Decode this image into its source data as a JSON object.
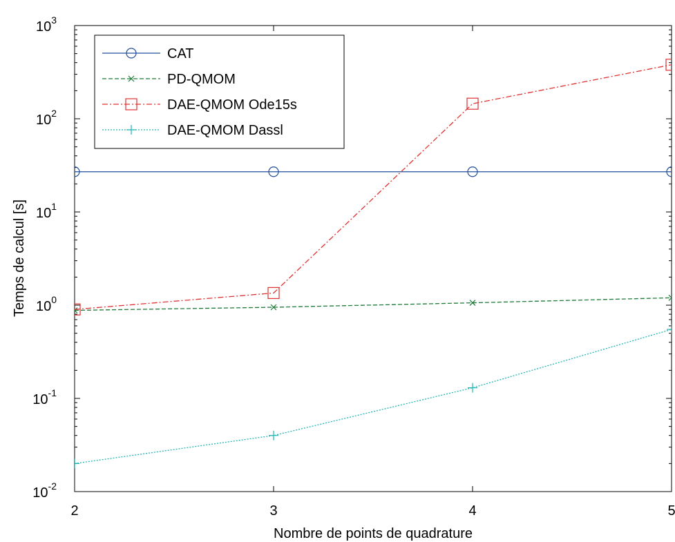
{
  "chart_data": {
    "type": "line",
    "title": "",
    "xlabel": "Nombre de points de quadrature",
    "ylabel": "Temps de calcul [s]",
    "xlim": [
      2,
      5
    ],
    "ylim": [
      0.01,
      1000
    ],
    "yscale": "log",
    "grid": false,
    "legend_position": "top-left",
    "x": [
      2,
      3,
      4,
      5
    ],
    "x_tick_labels": [
      "2",
      "3",
      "4",
      "5"
    ],
    "y_ticks": [
      {
        "base": "10",
        "exp": "-2",
        "value": 0.01
      },
      {
        "base": "10",
        "exp": "-1",
        "value": 0.1
      },
      {
        "base": "10",
        "exp": "0",
        "value": 1
      },
      {
        "base": "10",
        "exp": "1",
        "value": 10
      },
      {
        "base": "10",
        "exp": "2",
        "value": 100
      },
      {
        "base": "10",
        "exp": "3",
        "value": 1000
      }
    ],
    "series": [
      {
        "name": "CAT",
        "values": [
          27,
          27,
          27,
          27
        ],
        "color": "#1f4e9c",
        "dash": "solid",
        "marker": "circle"
      },
      {
        "name": "PD-QMOM",
        "values": [
          0.88,
          0.95,
          1.06,
          1.2
        ],
        "color": "#1a7a35",
        "dash": "dashed",
        "marker": "x"
      },
      {
        "name": "DAE-QMOM Ode15s",
        "values": [
          0.9,
          1.35,
          145,
          380
        ],
        "color": "#e03030",
        "dash": "dashdot",
        "marker": "square"
      },
      {
        "name": "DAE-QMOM Dassl",
        "values": [
          0.02,
          0.04,
          0.13,
          0.55
        ],
        "color": "#1fb5b5",
        "dash": "dotted",
        "marker": "plus"
      }
    ]
  }
}
